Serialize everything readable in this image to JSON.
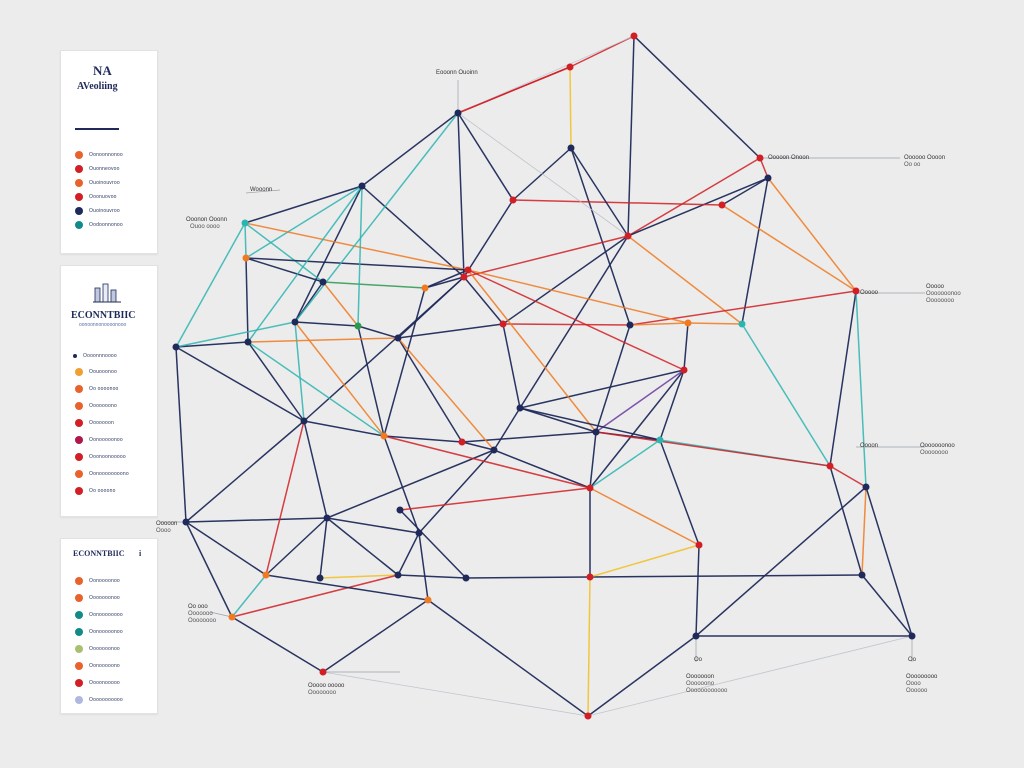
{
  "card1": {
    "title": "NA",
    "subtitle": "AVeoliing",
    "items": [
      {
        "label": "Oonoonnonoo",
        "color": "#e8622a"
      },
      {
        "label": "Ouonneovoo",
        "color": "#d11f25"
      },
      {
        "label": "Ouoinouvroo",
        "color": "#e8622a"
      },
      {
        "label": "Ooonuovoo",
        "color": "#d11f25"
      },
      {
        "label": "Ouoinouvroo",
        "color": "#1f2a5a"
      },
      {
        "label": "Oodoonnonoo",
        "color": "#138a8a"
      }
    ]
  },
  "card2": {
    "title": "ECONNTBIIC",
    "subtitle": "oonoonnonoooonooo",
    "header": "Oooonnnoooo",
    "items": [
      {
        "label": "Oouooonoo",
        "color": "#f0a030"
      },
      {
        "label": "Oo oooonoo",
        "color": "#e8622a"
      },
      {
        "label": "Ooooooono",
        "color": "#e8622a"
      },
      {
        "label": "Ooooooon",
        "color": "#d11f25"
      },
      {
        "label": "Oonooooonoo",
        "color": "#b0184a"
      },
      {
        "label": "Ooonoonooooo",
        "color": "#d11f25"
      },
      {
        "label": "Oonoooooooono",
        "color": "#e8622a"
      },
      {
        "label": "Oo oooono",
        "color": "#d11f25"
      }
    ]
  },
  "card3": {
    "title": "ECONNTBIIC",
    "marker": "i",
    "items": [
      {
        "label": "Oonoooonoo",
        "color": "#e8622a"
      },
      {
        "label": "Ooooooonoo",
        "color": "#e8622a"
      },
      {
        "label": "Oonoooooooo",
        "color": "#138a8a"
      },
      {
        "label": "Oonooooonoo",
        "color": "#138a8a"
      },
      {
        "label": "Ooooooonoo",
        "color": "#a8c070"
      },
      {
        "label": "Oonooooono",
        "color": "#e8622a"
      },
      {
        "label": "Oooonooooo",
        "color": "#d11f25"
      },
      {
        "label": "Ooooooooooo",
        "color": "#b0b8e0"
      }
    ]
  },
  "captions": {
    "top": "Eooonn Ouoinn",
    "left1": "Wooonn",
    "left2a": "Ooonon Ooonn",
    "left2b": "Ouoo oooo",
    "right1a": "Ooooon Onoon",
    "right1b": "Oooooo Oooon",
    "right1c": "Oo oo",
    "right2a": "Ooooo",
    "right2b": "Ooooooonoo",
    "right2c": "Oooooooo",
    "right3a": "Oooon",
    "right3b": "Ooooooonoo",
    "right3c": "Oooooooo",
    "left3a": "Ooooon",
    "left3b": "Oooo",
    "left4a": "Oo ooo",
    "left4b": "Ooooooo",
    "left4c": "Oooooooo",
    "bot1a": "Ooooo ooooo",
    "bot1b": "Oooooooo",
    "bot2": "Oo",
    "bot3a": "Ooooooon",
    "bot3b": "Oooooono",
    "bot3c": "Oooooooooooo",
    "bot4a": "Oo",
    "bot5a": "Ooooooooo",
    "bot5b": "Oooo",
    "bot5c": "Oooooo"
  }
}
